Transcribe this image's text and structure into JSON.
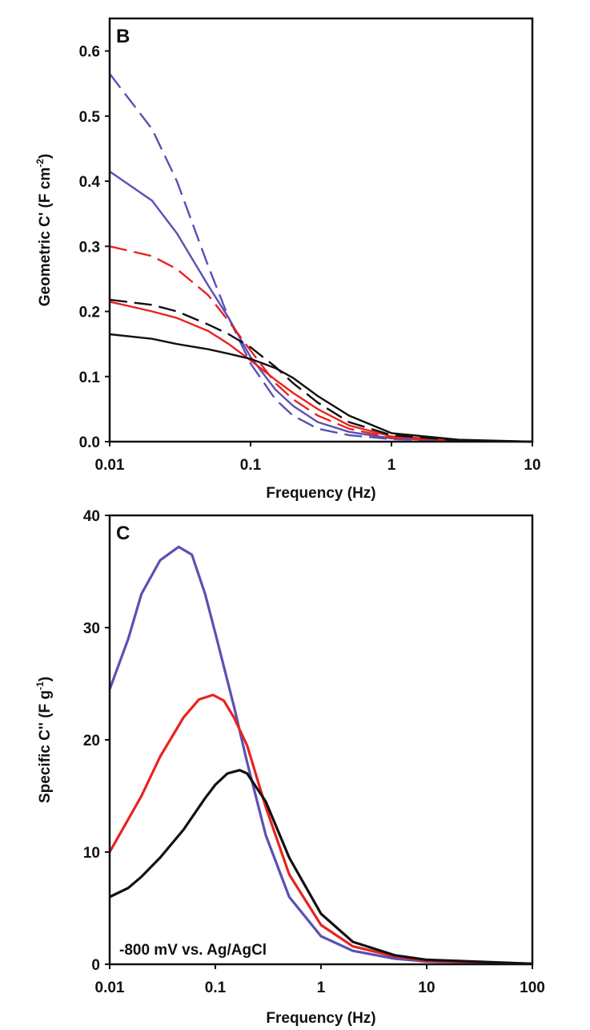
{
  "chart_data": [
    {
      "type": "line",
      "panel_label": "B",
      "xlabel": "Frequency (Hz)",
      "ylabel": "Geometric C' (F cm",
      "ylabel_sup": "-2",
      "ylabel_end": ")",
      "xscale": "log",
      "xlim": [
        0.01,
        10
      ],
      "ylim": [
        0,
        0.65
      ],
      "xticks": [
        "0.01",
        "0.1",
        "1",
        "10"
      ],
      "yticks": [
        "0.0",
        "0.1",
        "0.2",
        "0.3",
        "0.4",
        "0.5",
        "0.6"
      ],
      "grid": false,
      "series": [
        {
          "color": "#5b50b5",
          "dash": true,
          "x": [
            0.01,
            0.02,
            0.03,
            0.05,
            0.07,
            0.1,
            0.15,
            0.2,
            0.3,
            0.5,
            1,
            3,
            10
          ],
          "y": [
            0.565,
            0.48,
            0.4,
            0.27,
            0.19,
            0.12,
            0.065,
            0.04,
            0.02,
            0.01,
            0.004,
            0.001,
            0
          ]
        },
        {
          "color": "#5b50b5",
          "dash": false,
          "x": [
            0.01,
            0.02,
            0.03,
            0.05,
            0.07,
            0.1,
            0.15,
            0.2,
            0.3,
            0.5,
            1,
            3,
            10
          ],
          "y": [
            0.415,
            0.37,
            0.32,
            0.24,
            0.19,
            0.13,
            0.08,
            0.055,
            0.03,
            0.015,
            0.005,
            0.001,
            0
          ]
        },
        {
          "color": "#e8231f",
          "dash": true,
          "x": [
            0.01,
            0.02,
            0.03,
            0.05,
            0.07,
            0.1,
            0.15,
            0.2,
            0.3,
            0.5,
            1,
            3,
            10
          ],
          "y": [
            0.3,
            0.285,
            0.265,
            0.225,
            0.185,
            0.14,
            0.09,
            0.065,
            0.04,
            0.02,
            0.006,
            0.001,
            0
          ]
        },
        {
          "color": "#e8231f",
          "dash": false,
          "x": [
            0.01,
            0.02,
            0.03,
            0.05,
            0.07,
            0.1,
            0.15,
            0.2,
            0.3,
            0.5,
            1,
            3,
            10
          ],
          "y": [
            0.215,
            0.2,
            0.19,
            0.17,
            0.15,
            0.125,
            0.095,
            0.075,
            0.05,
            0.025,
            0.008,
            0.002,
            0
          ]
        },
        {
          "color": "#111111",
          "dash": true,
          "x": [
            0.01,
            0.02,
            0.03,
            0.05,
            0.07,
            0.1,
            0.15,
            0.2,
            0.3,
            0.5,
            1,
            3,
            10
          ],
          "y": [
            0.218,
            0.21,
            0.2,
            0.18,
            0.165,
            0.145,
            0.115,
            0.09,
            0.06,
            0.03,
            0.01,
            0.002,
            0
          ]
        },
        {
          "color": "#111111",
          "dash": false,
          "x": [
            0.01,
            0.02,
            0.03,
            0.05,
            0.07,
            0.1,
            0.15,
            0.2,
            0.3,
            0.5,
            1,
            3,
            10
          ],
          "y": [
            0.165,
            0.158,
            0.15,
            0.142,
            0.135,
            0.127,
            0.113,
            0.098,
            0.07,
            0.04,
            0.013,
            0.003,
            0
          ]
        }
      ]
    },
    {
      "type": "line",
      "panel_label": "C",
      "xlabel": "Frequency (Hz)",
      "ylabel": "Specific C'' (F g",
      "ylabel_sup": "-1",
      "ylabel_end": ")",
      "annotation": "-800 mV vs. Ag/AgCl",
      "xscale": "log",
      "xlim": [
        0.01,
        100
      ],
      "ylim": [
        0,
        40
      ],
      "xticks": [
        "0.01",
        "0.1",
        "1",
        "10",
        "100"
      ],
      "yticks": [
        "0",
        "10",
        "20",
        "30",
        "40"
      ],
      "grid": false,
      "series": [
        {
          "color": "#5b50b5",
          "dash": false,
          "x": [
            0.01,
            0.015,
            0.02,
            0.03,
            0.045,
            0.06,
            0.08,
            0.1,
            0.15,
            0.2,
            0.3,
            0.5,
            1,
            2,
            5,
            10,
            100
          ],
          "y": [
            24.5,
            29,
            33,
            36,
            37.2,
            36.5,
            33,
            29.5,
            23,
            18,
            11.5,
            6,
            2.5,
            1.2,
            0.5,
            0.25,
            0.05
          ]
        },
        {
          "color": "#e8231f",
          "dash": false,
          "x": [
            0.01,
            0.02,
            0.03,
            0.05,
            0.07,
            0.095,
            0.12,
            0.15,
            0.2,
            0.3,
            0.5,
            1,
            2,
            5,
            10,
            100
          ],
          "y": [
            10,
            15,
            18.5,
            22,
            23.6,
            24,
            23.5,
            22,
            19.5,
            14,
            8,
            3.5,
            1.6,
            0.7,
            0.3,
            0.05
          ]
        },
        {
          "color": "#111111",
          "dash": false,
          "x": [
            0.01,
            0.015,
            0.02,
            0.03,
            0.05,
            0.08,
            0.1,
            0.13,
            0.17,
            0.2,
            0.3,
            0.5,
            1,
            2,
            5,
            10,
            100
          ],
          "y": [
            6,
            6.8,
            7.8,
            9.5,
            12,
            14.8,
            16,
            17,
            17.3,
            17,
            14.5,
            9.5,
            4.5,
            2,
            0.8,
            0.4,
            0.05
          ]
        }
      ]
    }
  ]
}
